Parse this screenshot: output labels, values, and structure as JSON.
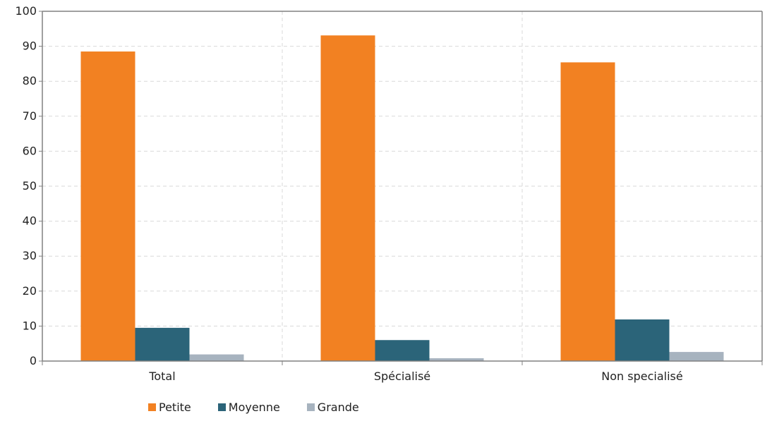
{
  "chart_data": {
    "type": "bar",
    "categories": [
      "Total",
      "Spécialisé",
      "Non specialisé"
    ],
    "series": [
      {
        "name": "Petite",
        "values": [
          88.5,
          93.1,
          85.4
        ],
        "color": "#f28122"
      },
      {
        "name": "Moyenne",
        "values": [
          9.5,
          6.0,
          11.9
        ],
        "color": "#2b6479"
      },
      {
        "name": "Grande",
        "values": [
          1.9,
          0.8,
          2.6
        ],
        "color": "#a7b3bf"
      }
    ],
    "ylim": [
      0,
      100
    ],
    "yticks": [
      "0",
      "10",
      "20",
      "30",
      "40",
      "50",
      "60",
      "70",
      "80",
      "90",
      "100"
    ],
    "grid": true,
    "legend_position": "bottom"
  }
}
